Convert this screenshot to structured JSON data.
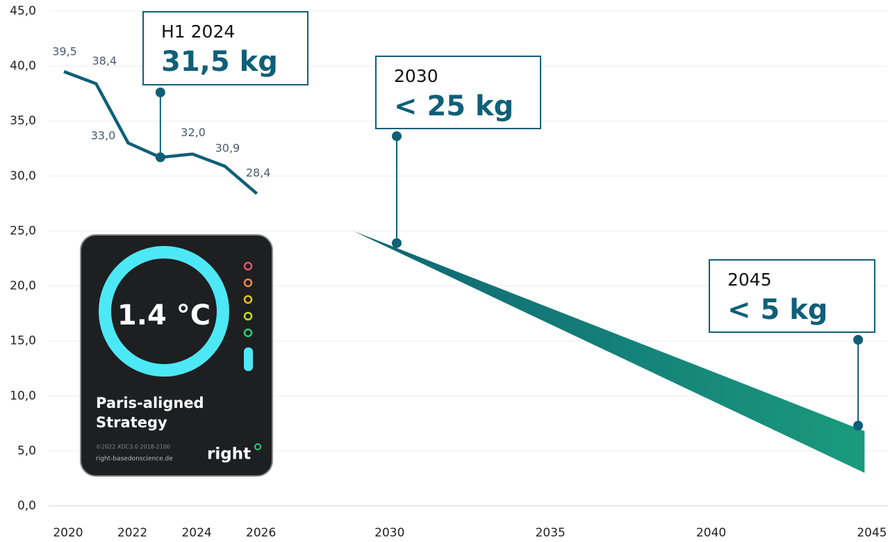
{
  "chart_data": {
    "type": "line",
    "x": [
      2020,
      2021,
      2022,
      2023,
      2024,
      2025,
      2026
    ],
    "values": [
      39.5,
      38.4,
      33.0,
      31.7,
      32.0,
      30.9,
      28.4
    ],
    "value_labels": [
      "39,5",
      "38,4",
      "33,0",
      null,
      "32,0",
      "30,9",
      "28,4"
    ],
    "color": "#0f5f78",
    "band": {
      "x": [
        2026,
        2029,
        2044.9
      ],
      "upper": [
        28.2,
        25.0,
        6.8
      ],
      "lower": [
        28.2,
        25.0,
        3.0
      ],
      "colors": [
        "#0d5a73",
        "#1a9a7c"
      ]
    },
    "xlim": [
      2020,
      2045
    ],
    "xticks": [
      2020,
      2022,
      2024,
      2026,
      2030,
      2035,
      2040,
      2045
    ],
    "ylim": [
      0,
      45
    ],
    "yticks": [
      {
        "value": 0,
        "label": "0,0"
      },
      {
        "value": 5,
        "label": "5,0"
      },
      {
        "value": 10,
        "label": "10,0"
      },
      {
        "value": 15,
        "label": "15,0"
      },
      {
        "value": 20,
        "label": "20,0"
      },
      {
        "value": 25,
        "label": "25,0"
      },
      {
        "value": 30,
        "label": "30,0"
      },
      {
        "value": 35,
        "label": "35,0"
      },
      {
        "value": 40,
        "label": "40,0"
      },
      {
        "value": 45,
        "label": "45,0"
      }
    ],
    "grid": true,
    "annotations": [
      {
        "x": 2023,
        "y": 31.7,
        "label": "H1 2024",
        "value_text": "31,5 kg"
      },
      {
        "x": 2030.35,
        "y": 23.9,
        "label": "2030",
        "value_text": "< 25 kg"
      },
      {
        "x": 2044.7,
        "y": 7.3,
        "label": "2045",
        "value_text": "< 5 kg"
      }
    ]
  },
  "badge": {
    "temperature": "1.4 °C",
    "line1": "Paris-aligned",
    "line2": "Strategy",
    "meta": "©2022   XDC3.0   2018-2100",
    "url": "right-basedonscience.de",
    "brand": "right"
  }
}
